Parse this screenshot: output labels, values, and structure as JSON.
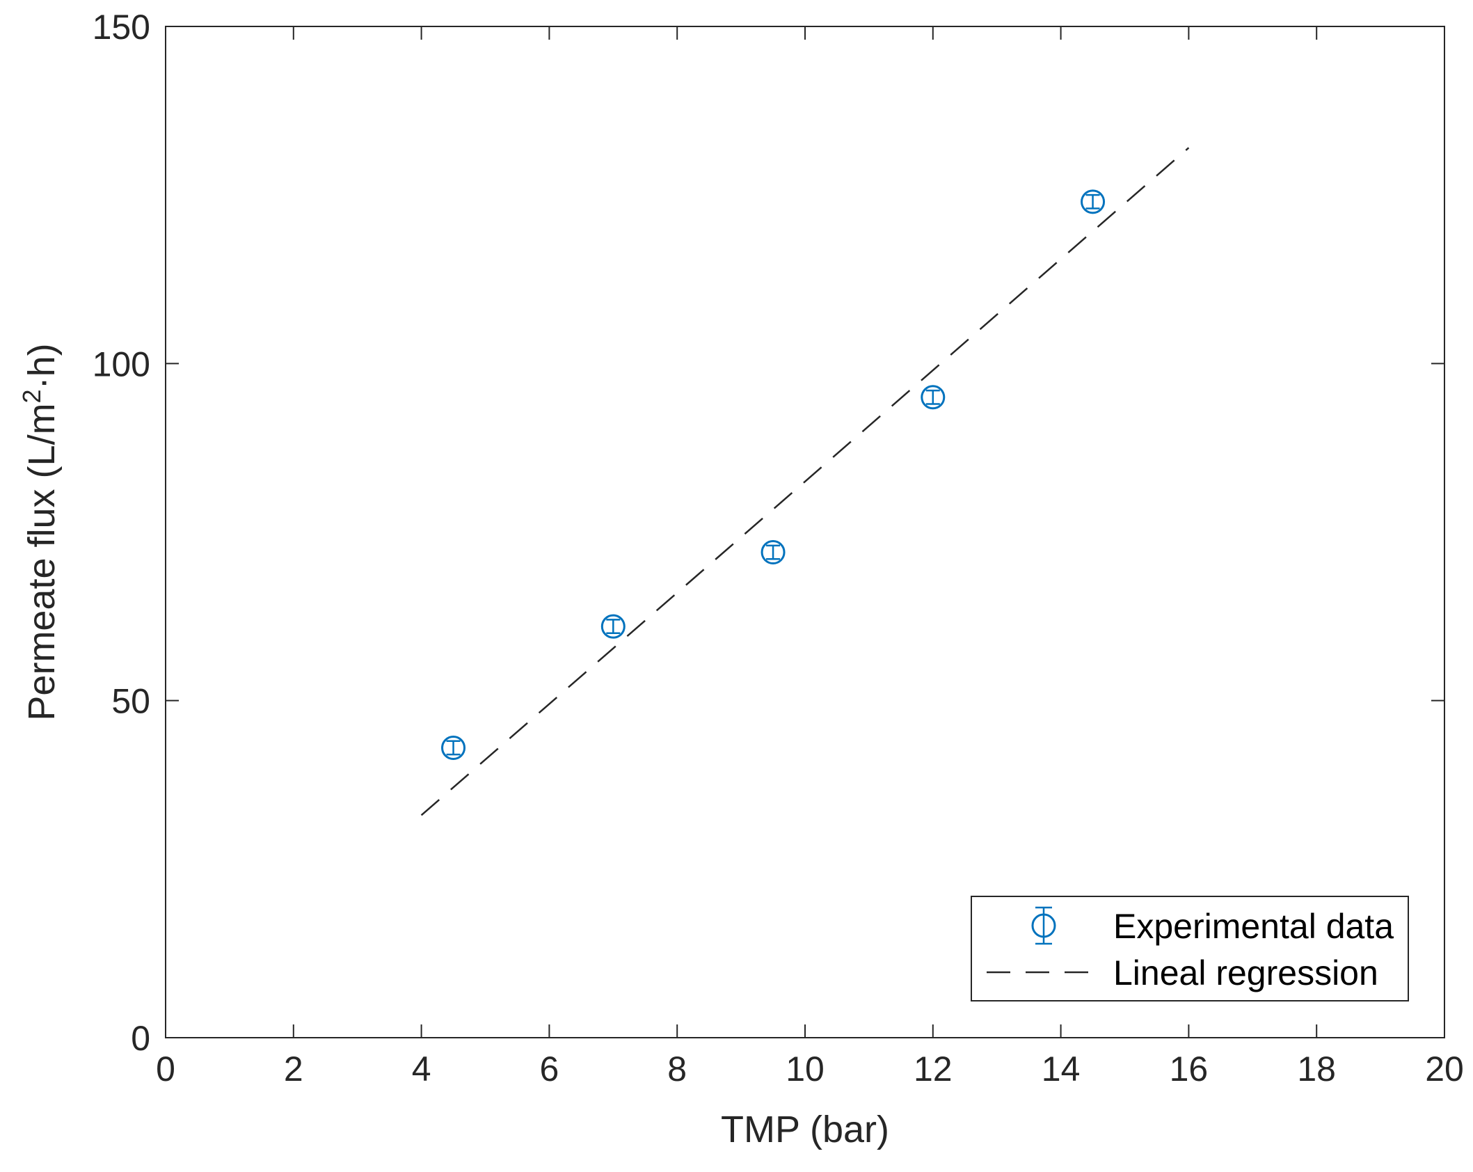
{
  "chart_data": {
    "type": "scatter",
    "xlabel": "TMP (bar)",
    "ylabel": "Permeate flux (L/m²·h)",
    "ylabel_parts": {
      "before": "Permeate flux (L/m",
      "sup": "2",
      "after": "·h)"
    },
    "xlim": [
      0,
      20
    ],
    "ylim": [
      0,
      150
    ],
    "xticks": [
      0,
      2,
      4,
      6,
      8,
      10,
      12,
      14,
      16,
      18,
      20
    ],
    "yticks": [
      0,
      50,
      100,
      150
    ],
    "grid": false,
    "legend_position": "bottom-right",
    "series": [
      {
        "name": "Experimental data",
        "kind": "errorbar",
        "marker": "circle",
        "color": "#0072BD",
        "x": [
          4.5,
          7,
          9.5,
          12,
          14.5
        ],
        "y": [
          43,
          61,
          72,
          95,
          124
        ],
        "error": [
          1,
          1,
          1,
          1,
          1
        ]
      },
      {
        "name": "Lineal regression",
        "kind": "line",
        "style": "dashed",
        "color": "#262626",
        "x": [
          4,
          16
        ],
        "y": [
          33,
          132
        ]
      }
    ]
  }
}
